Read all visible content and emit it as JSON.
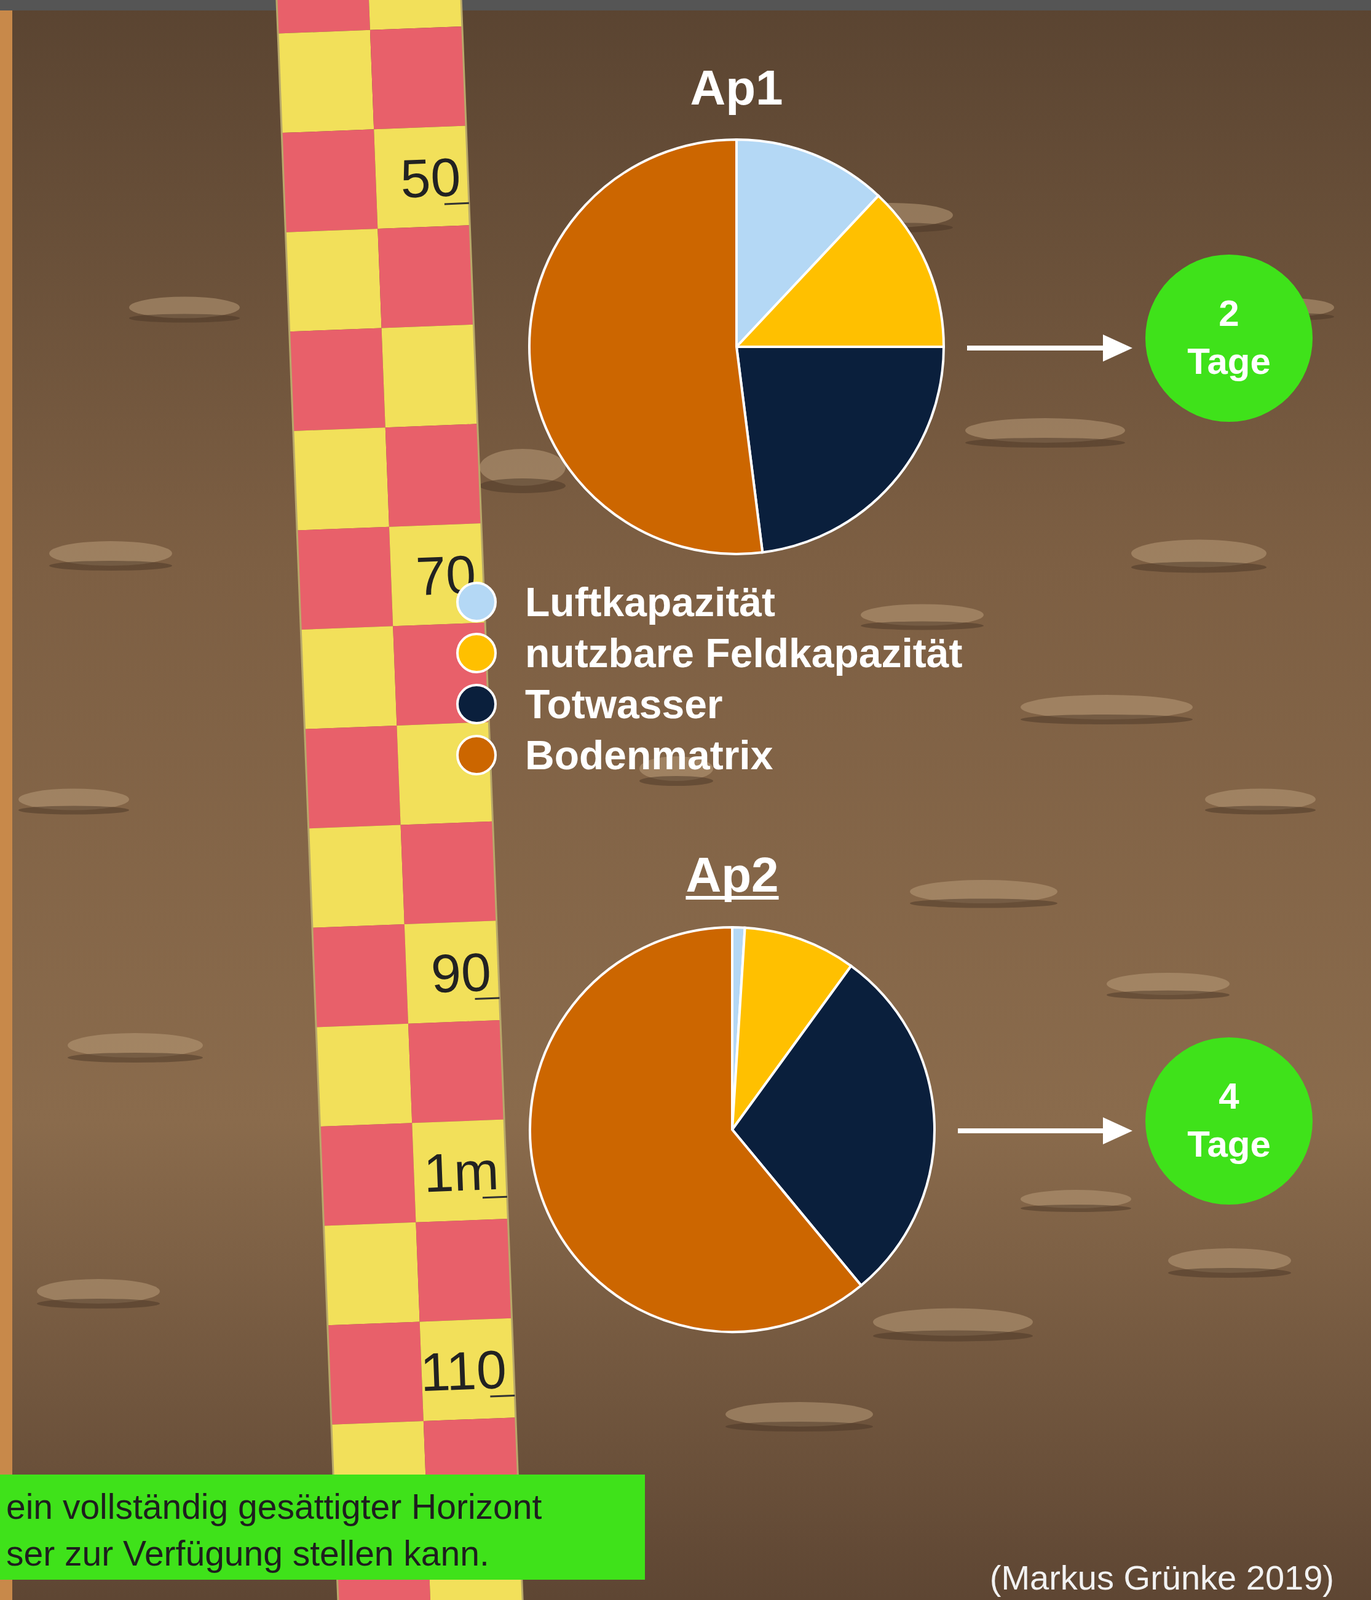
{
  "chart_data": [
    {
      "type": "pie",
      "title": "Ap1",
      "values": [
        12,
        13,
        23,
        52
      ],
      "colors": [
        "#b4d8f5",
        "#ffc000",
        "#0a1f3c",
        "#cc6600"
      ],
      "annotation": {
        "value": 2,
        "label": "Tage"
      }
    },
    {
      "type": "pie",
      "title": "Ap2",
      "values": [
        1,
        9,
        29,
        61
      ],
      "colors": [
        "#b4d8f5",
        "#ffc000",
        "#0a1f3c",
        "#cc6600"
      ],
      "annotation": {
        "value": 4,
        "label": "Tage"
      }
    }
  ],
  "legend_labels": [
    "Luftkapazität",
    "nutzbare Feldkapazität",
    "Totwasser",
    "Bodenmatrix"
  ],
  "ruler": {
    "lim": [
      40,
      122
    ],
    "ticks": [
      50,
      70,
      90,
      {
        "value": 100,
        "label": "1m"
      },
      110
    ]
  },
  "note_lines": [
    "ein vollständig gesättigter Horizont",
    "ser zur Verfügung stellen kann."
  ],
  "credit": "(Markus Grünke 2019)"
}
